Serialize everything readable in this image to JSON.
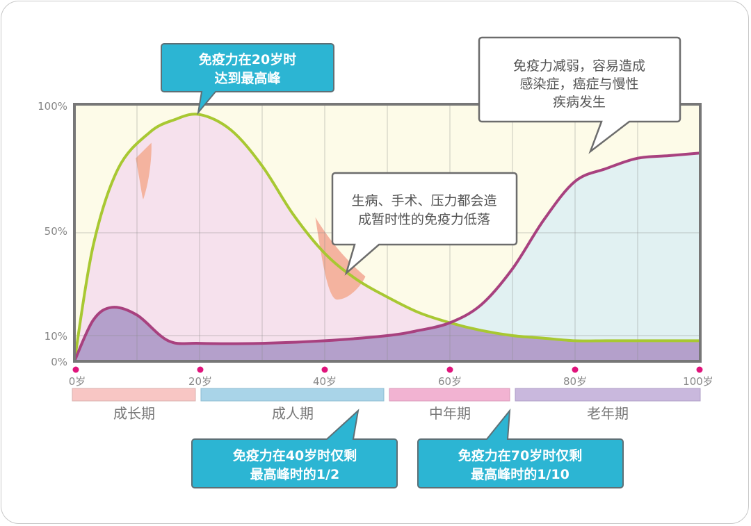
{
  "chart_data": {
    "type": "area",
    "title": "",
    "xlabel": "",
    "ylabel": "",
    "xlim": [
      0,
      100
    ],
    "ylim": [
      0,
      100
    ],
    "x_ticks": [
      "0岁",
      "20岁",
      "40岁",
      "60岁",
      "80岁",
      "100岁"
    ],
    "y_ticks": [
      "0%",
      "10%",
      "50%",
      "100%"
    ],
    "series": [
      {
        "color": "#a8c832",
        "x": [
          0,
          3,
          7,
          12,
          16,
          20,
          25,
          30,
          35,
          40,
          45,
          50,
          55,
          60,
          65,
          70,
          75,
          80,
          85,
          90,
          95,
          100
        ],
        "values": [
          0,
          45,
          75,
          89,
          94,
          96,
          90,
          76,
          57,
          42,
          32,
          25,
          19,
          15,
          12,
          10,
          9,
          8,
          8,
          8,
          8,
          8
        ]
      },
      {
        "color": "#a8417f",
        "x": [
          0,
          3,
          6,
          10,
          15,
          20,
          30,
          40,
          50,
          55,
          60,
          65,
          70,
          75,
          80,
          85,
          90,
          95,
          100
        ],
        "values": [
          0,
          16,
          21,
          18,
          8,
          7,
          7,
          8,
          10,
          12,
          15,
          22,
          36,
          55,
          70,
          75,
          79,
          80,
          81
        ]
      }
    ],
    "stages": [
      {
        "label": "成长期",
        "from": 0,
        "to": 20,
        "color": "#f8c6c4"
      },
      {
        "label": "成人期",
        "from": 20,
        "to": 50,
        "color": "#a9d4e8"
      },
      {
        "label": "中年期",
        "from": 50,
        "to": 70,
        "color": "#f2b3d2"
      },
      {
        "label": "老年期",
        "from": 70,
        "to": 100,
        "color": "#c9b8dd"
      }
    ],
    "annotations": {
      "peak": [
        "免疫力在20岁时",
        "达到最高峰"
      ],
      "decline": [
        "免疫力减弱，容易造成",
        "感染症，癌症与慢性",
        "疾病发生"
      ],
      "illness": [
        "生病、手术、压力都会造",
        "成暂时性的免疫力低落"
      ],
      "age40": [
        "免疫力在40岁时仅剩",
        "最高峰时的1/2"
      ],
      "age70": [
        "免疫力在70岁时仅剩",
        "最高峰时的1/10"
      ]
    },
    "colors": {
      "plot_bg": "#fdfbe8",
      "young_fill": "#f6e1ed",
      "elder_fill": "#e1f1f2",
      "low_fill": "#b4a0cb",
      "dip_fill": "#f4b39f",
      "callout_blue": "#2cb5d3",
      "axis_dot": "#e0147c"
    }
  }
}
